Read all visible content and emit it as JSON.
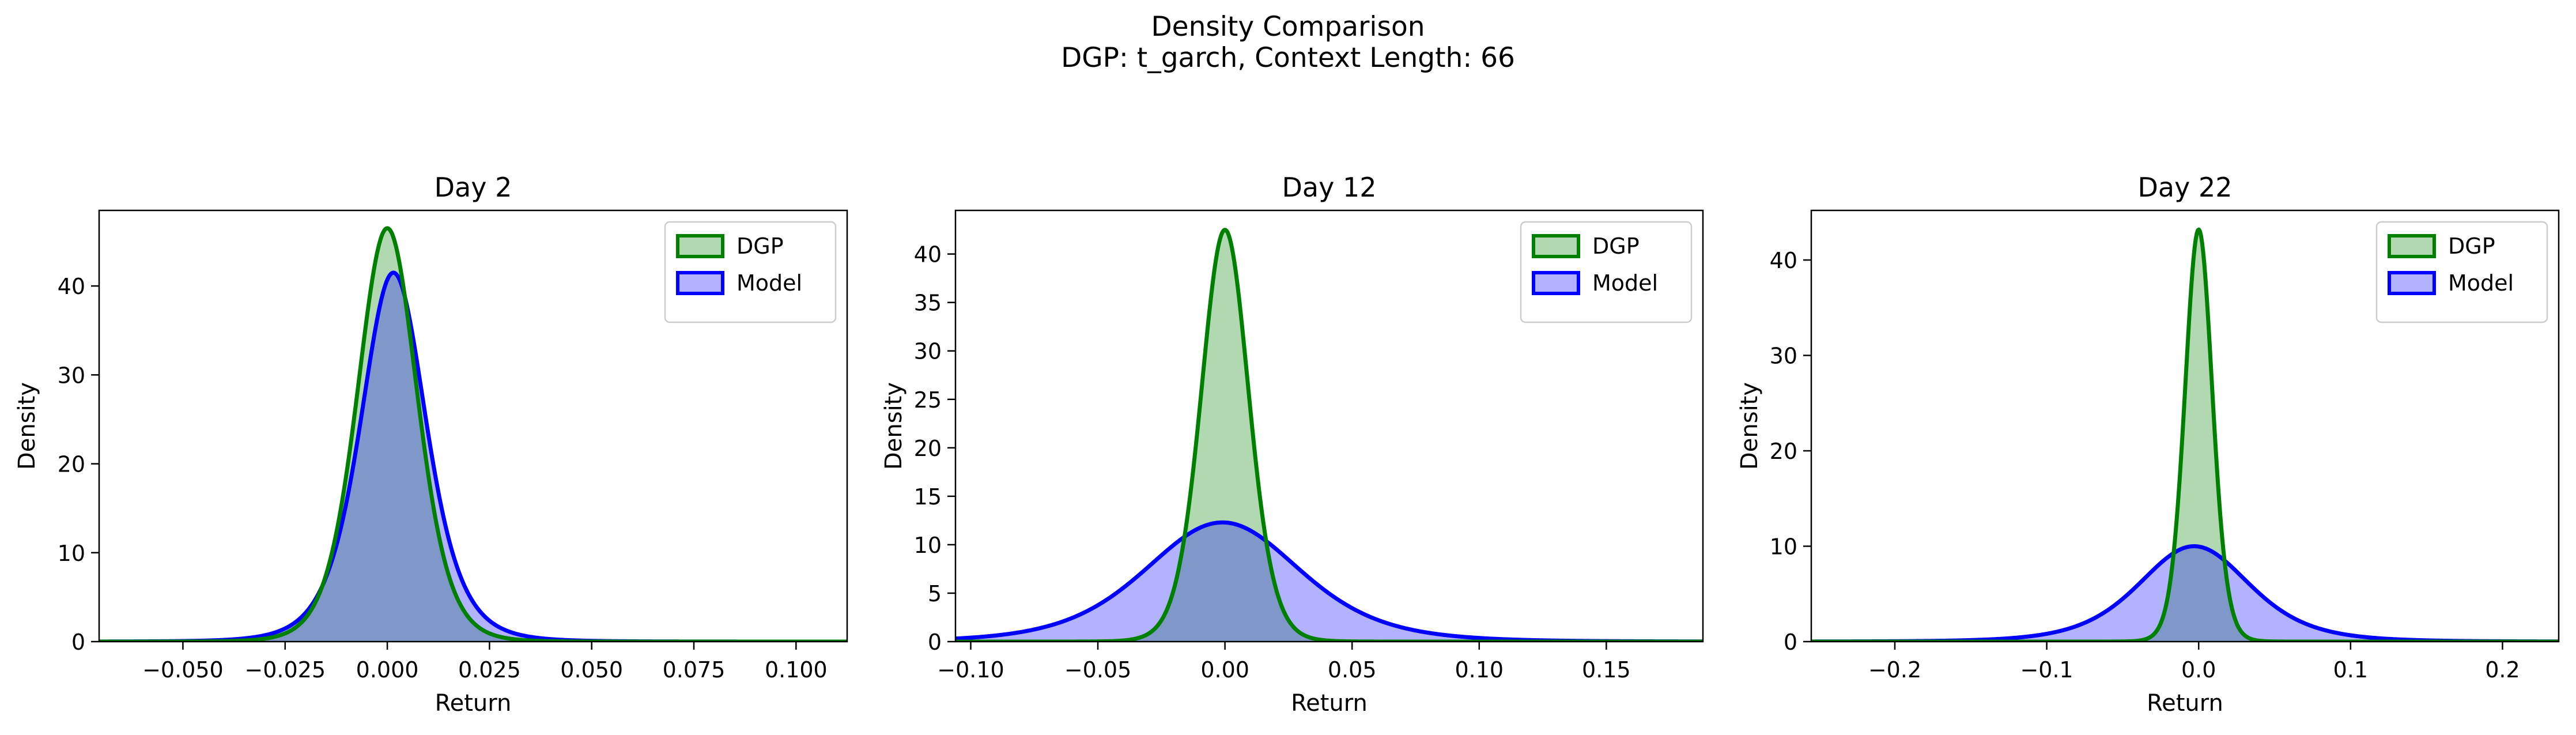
{
  "figure": {
    "title": "Density Comparison",
    "subtitle": "DGP: t_garch, Context Length: 66"
  },
  "colors": {
    "dgp_line": "#008000",
    "dgp_fill": "#b2d8b2",
    "model_line": "#0000ff",
    "model_fill": "#b2b2ff",
    "overlap_fill": "#7f97c9"
  },
  "chart_data": [
    {
      "type": "area",
      "title": "Day 2",
      "xlabel": "Return",
      "ylabel": "Density",
      "xlim": [
        -0.0705,
        0.1125
      ],
      "ylim": [
        0,
        48.5
      ],
      "xticks": [
        -0.05,
        -0.025,
        0.0,
        0.025,
        0.05,
        0.075,
        0.1
      ],
      "xtick_labels": [
        "−0.050",
        "−0.025",
        "0.000",
        "0.025",
        "0.050",
        "0.075",
        "0.100"
      ],
      "yticks": [
        0,
        10,
        20,
        30,
        40
      ],
      "ytick_labels": [
        "0",
        "10",
        "20",
        "30",
        "40"
      ],
      "legend": {
        "position": "top-right",
        "entries": [
          "DGP",
          "Model"
        ]
      },
      "series": [
        {
          "name": "DGP",
          "peak_x": 0.0,
          "peak_density": 46.5
        },
        {
          "name": "Model",
          "peak_x": 0.0015,
          "peak_density": 41.5
        }
      ]
    },
    {
      "type": "area",
      "title": "Day 12",
      "xlabel": "Return",
      "ylabel": "Density",
      "xlim": [
        -0.106,
        0.188
      ],
      "ylim": [
        0,
        44.5
      ],
      "xticks": [
        -0.1,
        -0.05,
        0.0,
        0.05,
        0.1,
        0.15
      ],
      "xtick_labels": [
        "−0.10",
        "−0.05",
        "0.00",
        "0.05",
        "0.10",
        "0.15"
      ],
      "yticks": [
        0,
        5,
        10,
        15,
        20,
        25,
        30,
        35,
        40
      ],
      "ytick_labels": [
        "0",
        "5",
        "10",
        "15",
        "20",
        "25",
        "30",
        "35",
        "40"
      ],
      "legend": {
        "position": "top-right",
        "entries": [
          "DGP",
          "Model"
        ]
      },
      "series": [
        {
          "name": "DGP",
          "peak_x": 0.0,
          "peak_density": 42.5
        },
        {
          "name": "Model",
          "peak_x": -0.001,
          "peak_density": 12.3
        }
      ]
    },
    {
      "type": "area",
      "title": "Day 22",
      "xlabel": "Return",
      "ylabel": "Density",
      "xlim": [
        -0.255,
        0.237
      ],
      "ylim": [
        0,
        45.2
      ],
      "xticks": [
        -0.2,
        -0.1,
        0.0,
        0.1,
        0.2
      ],
      "xtick_labels": [
        "−0.2",
        "−0.1",
        "0.0",
        "0.1",
        "0.2"
      ],
      "yticks": [
        0,
        10,
        20,
        30,
        40
      ],
      "ytick_labels": [
        "0",
        "10",
        "20",
        "30",
        "40"
      ],
      "legend": {
        "position": "top-right",
        "entries": [
          "DGP",
          "Model"
        ]
      },
      "series": [
        {
          "name": "DGP",
          "peak_x": 0.0,
          "peak_density": 43.2
        },
        {
          "name": "Model",
          "peak_x": -0.003,
          "peak_density": 10.0
        }
      ]
    }
  ]
}
